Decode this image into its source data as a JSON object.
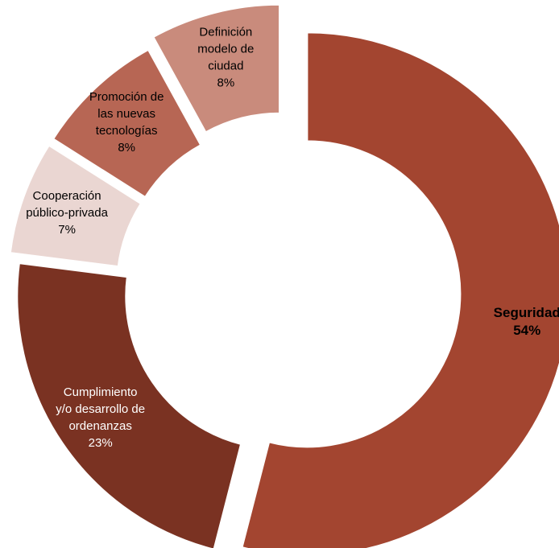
{
  "chart_data": {
    "type": "pie",
    "donut": true,
    "title": "",
    "legend": "none",
    "slices": [
      {
        "label_lines": [
          "Seguridad"
        ],
        "value": 54,
        "pct_label": "54%",
        "color": "#a34530",
        "text_color": "#000000",
        "bold": true,
        "exploded": true
      },
      {
        "label_lines": [
          "Cumplimiento",
          "y/o desarrollo de",
          "ordenanzas"
        ],
        "value": 23,
        "pct_label": "23%",
        "color": "#7a3222",
        "text_color": "#ffffff",
        "bold": false,
        "exploded": true
      },
      {
        "label_lines": [
          "Cooperación",
          "público-privada"
        ],
        "value": 7,
        "pct_label": "7%",
        "color": "#ead6d2",
        "text_color": "#000000",
        "bold": false,
        "exploded": true
      },
      {
        "label_lines": [
          "Promoción de",
          "las nuevas",
          "tecnologías"
        ],
        "value": 8,
        "pct_label": "8%",
        "color": "#b76654",
        "text_color": "#000000",
        "bold": false,
        "exploded": true
      },
      {
        "label_lines": [
          "Definición",
          "modelo de",
          "ciudad"
        ],
        "value": 8,
        "pct_label": "8%",
        "color": "#c98b7c",
        "text_color": "#000000",
        "bold": false,
        "exploded": true
      }
    ]
  }
}
